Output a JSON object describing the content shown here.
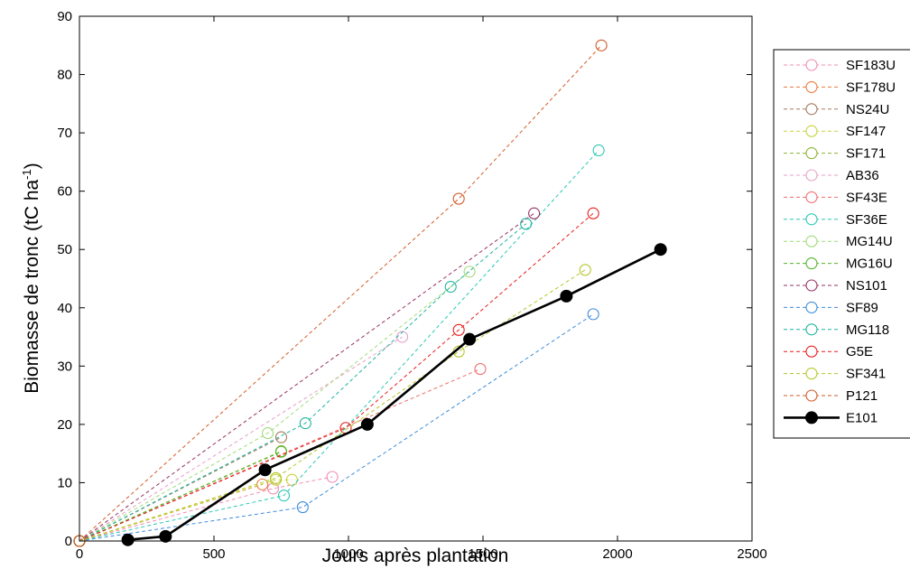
{
  "chart_data": {
    "type": "line",
    "title": "",
    "xlabel": "Jours après plantation",
    "ylabel_main": "Biomasse de tronc (tC ha",
    "ylabel_sup": "-1",
    "ylabel_end": ")",
    "xlim": [
      0,
      2500
    ],
    "ylim": [
      0,
      90
    ],
    "xticks": [
      0,
      500,
      1000,
      1500,
      2000,
      2500
    ],
    "yticks": [
      0,
      10,
      20,
      30,
      40,
      50,
      60,
      70,
      80,
      90
    ],
    "grid": false,
    "legend_position": "right-outside",
    "series": [
      {
        "name": "SF183U",
        "color": "#f08cb4",
        "style": "dashed-open-circle",
        "x": [
          0,
          720,
          940
        ],
        "y": [
          0,
          9,
          11
        ]
      },
      {
        "name": "SF178U",
        "color": "#e87a3c",
        "style": "dashed-open-circle",
        "x": [
          0,
          680
        ],
        "y": [
          0,
          9.7
        ]
      },
      {
        "name": "NS24U",
        "color": "#a57a5e",
        "style": "dashed-open-circle",
        "x": [
          0,
          750
        ],
        "y": [
          0,
          17.8
        ]
      },
      {
        "name": "SF147",
        "color": "#c8d23c",
        "style": "dashed-open-circle",
        "x": [
          0,
          730,
          790
        ],
        "y": [
          0,
          10.5,
          10.5
        ]
      },
      {
        "name": "SF171",
        "color": "#8cb432",
        "style": "dashed-open-circle",
        "x": [
          0,
          750
        ],
        "y": [
          0,
          15.4
        ]
      },
      {
        "name": "AB36",
        "color": "#e6a0c8",
        "style": "dashed-open-circle",
        "x": [
          0,
          1200
        ],
        "y": [
          0,
          35
        ]
      },
      {
        "name": "SF43E",
        "color": "#f06e6e",
        "style": "dashed-open-circle",
        "x": [
          0,
          1490
        ],
        "y": [
          0,
          29.5
        ]
      },
      {
        "name": "SF36E",
        "color": "#28c8b4",
        "style": "dashed-open-circle",
        "x": [
          0,
          760,
          1930
        ],
        "y": [
          0,
          7.8,
          67
        ]
      },
      {
        "name": "MG14U",
        "color": "#a0dc78",
        "style": "dashed-open-circle",
        "x": [
          0,
          700,
          1450
        ],
        "y": [
          0,
          18.5,
          46.2
        ]
      },
      {
        "name": "MG16U",
        "color": "#50b428",
        "style": "dashed-open-circle",
        "x": [
          0,
          750
        ],
        "y": [
          0,
          15.3
        ]
      },
      {
        "name": "NS101",
        "color": "#963264",
        "style": "dashed-open-circle",
        "x": [
          0,
          1690
        ],
        "y": [
          0,
          56.2
        ]
      },
      {
        "name": "SF89",
        "color": "#3c8cdc",
        "style": "dashed-open-circle",
        "x": [
          0,
          830,
          1910
        ],
        "y": [
          0,
          5.8,
          38.9
        ]
      },
      {
        "name": "MG118",
        "color": "#1eb4a0",
        "style": "dashed-open-circle",
        "x": [
          0,
          840,
          1380,
          1660
        ],
        "y": [
          0,
          20.2,
          43.6,
          54.4
        ]
      },
      {
        "name": "G5E",
        "color": "#e61e1e",
        "style": "dashed-open-circle",
        "x": [
          0,
          990,
          1410,
          1910
        ],
        "y": [
          0,
          19.4,
          36.2,
          56.2
        ]
      },
      {
        "name": "SF341",
        "color": "#b4c828",
        "style": "dashed-open-circle",
        "x": [
          0,
          730,
          1410,
          1880
        ],
        "y": [
          0,
          10.8,
          32.5,
          46.5
        ]
      },
      {
        "name": "P121",
        "color": "#d25a28",
        "style": "dashed-open-circle",
        "x": [
          0,
          1410,
          1940
        ],
        "y": [
          0,
          58.7,
          85
        ]
      },
      {
        "name": "E101",
        "color": "#000000",
        "style": "solid-filled-circle",
        "x": [
          180,
          320,
          690,
          1070,
          1450,
          1810,
          2160
        ],
        "y": [
          0.2,
          0.8,
          12.2,
          20,
          34.6,
          42,
          50
        ]
      }
    ]
  }
}
